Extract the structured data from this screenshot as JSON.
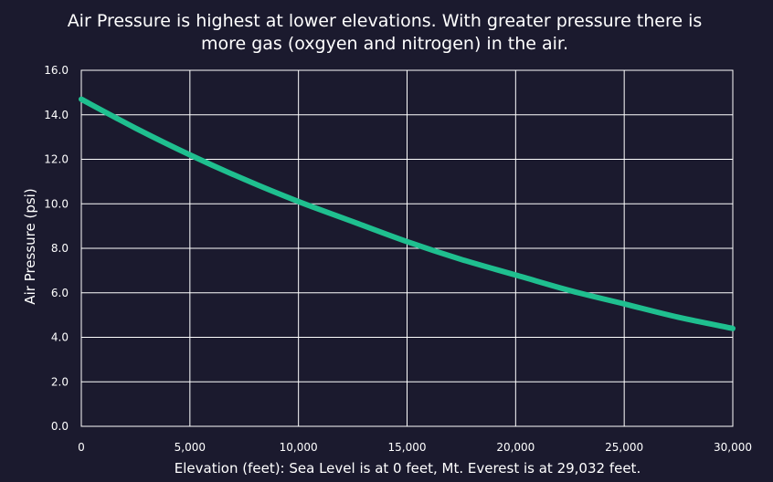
{
  "chart_data": {
    "type": "line",
    "title_lines": [
      "Air Pressure is highest at lower elevations. With greater pressure there is",
      "more gas (oxgyen and nitrogen) in the air."
    ],
    "xlabel": "Elevation (feet):  Sea Level is at 0 feet, Mt. Everest is at 29,032 feet.",
    "ylabel": "Air Pressure (psi)",
    "xlim": [
      0,
      30000
    ],
    "ylim": [
      0,
      16
    ],
    "x_ticks": [
      0,
      5000,
      10000,
      15000,
      20000,
      25000,
      30000
    ],
    "x_tick_labels": [
      "0",
      "5,000",
      "10,000",
      "15,000",
      "20,000",
      "25,000",
      "30,000"
    ],
    "y_ticks": [
      0,
      2,
      4,
      6,
      8,
      10,
      12,
      14,
      16
    ],
    "y_tick_labels": [
      "0.0",
      "2.0",
      "4.0",
      "6.0",
      "8.0",
      "10.0",
      "12.0",
      "14.0",
      "16.0"
    ],
    "grid": true,
    "line_color": "#1fbf8f",
    "x": [
      0,
      2500,
      5000,
      7500,
      10000,
      12500,
      15000,
      17500,
      20000,
      22500,
      25000,
      27500,
      30000
    ],
    "y": [
      14.7,
      13.4,
      12.2,
      11.1,
      10.1,
      9.2,
      8.3,
      7.5,
      6.8,
      6.1,
      5.5,
      4.9,
      4.4
    ]
  }
}
